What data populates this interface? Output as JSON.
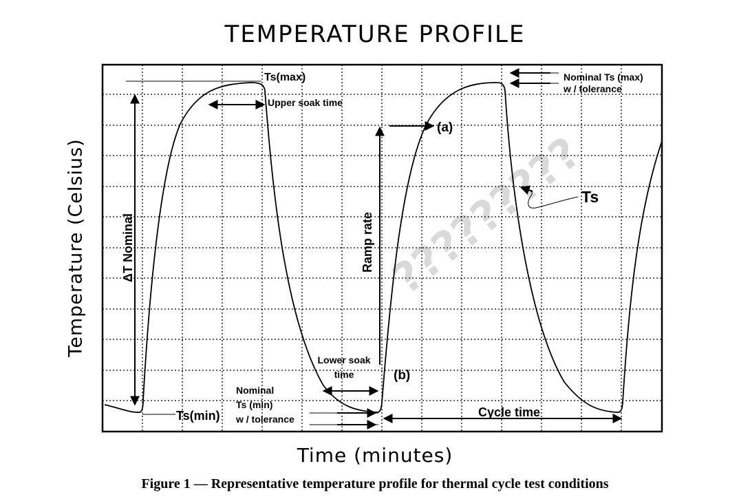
{
  "title": "TEMPERATURE PROFILE",
  "x_axis_label": "Time (minutes)",
  "y_axis_label": "Temperature (Celsius)",
  "caption": "Figure 1 — Representative temperature profile for thermal cycle test conditions",
  "annotations": {
    "ts_max": "Ts(max)",
    "upper_soak_time": "Upper soak time",
    "nominal_ts_max_line1": "Nominal Ts (max)",
    "nominal_ts_max_line2": "w / tolerance",
    "point_a": "(a)",
    "point_b": "(b)",
    "ts": "Ts",
    "ramp_rate": "Ramp rate",
    "delta_t_nominal": "ΔT Nominal",
    "lower_soak_line1": "Lower soak",
    "lower_soak_line2": "time",
    "nominal_ts_min_line1": "Nominal",
    "nominal_ts_min_line2": "Ts (min)",
    "nominal_ts_min_line3": "w / tolerance",
    "ts_min": "Ts(min)",
    "cycle_time": "Cycle time"
  },
  "watermark": "?????????",
  "colors": {
    "line": "#000000",
    "grid": "#000000",
    "watermark": "#d9d9d9",
    "background": "#ffffff"
  }
}
